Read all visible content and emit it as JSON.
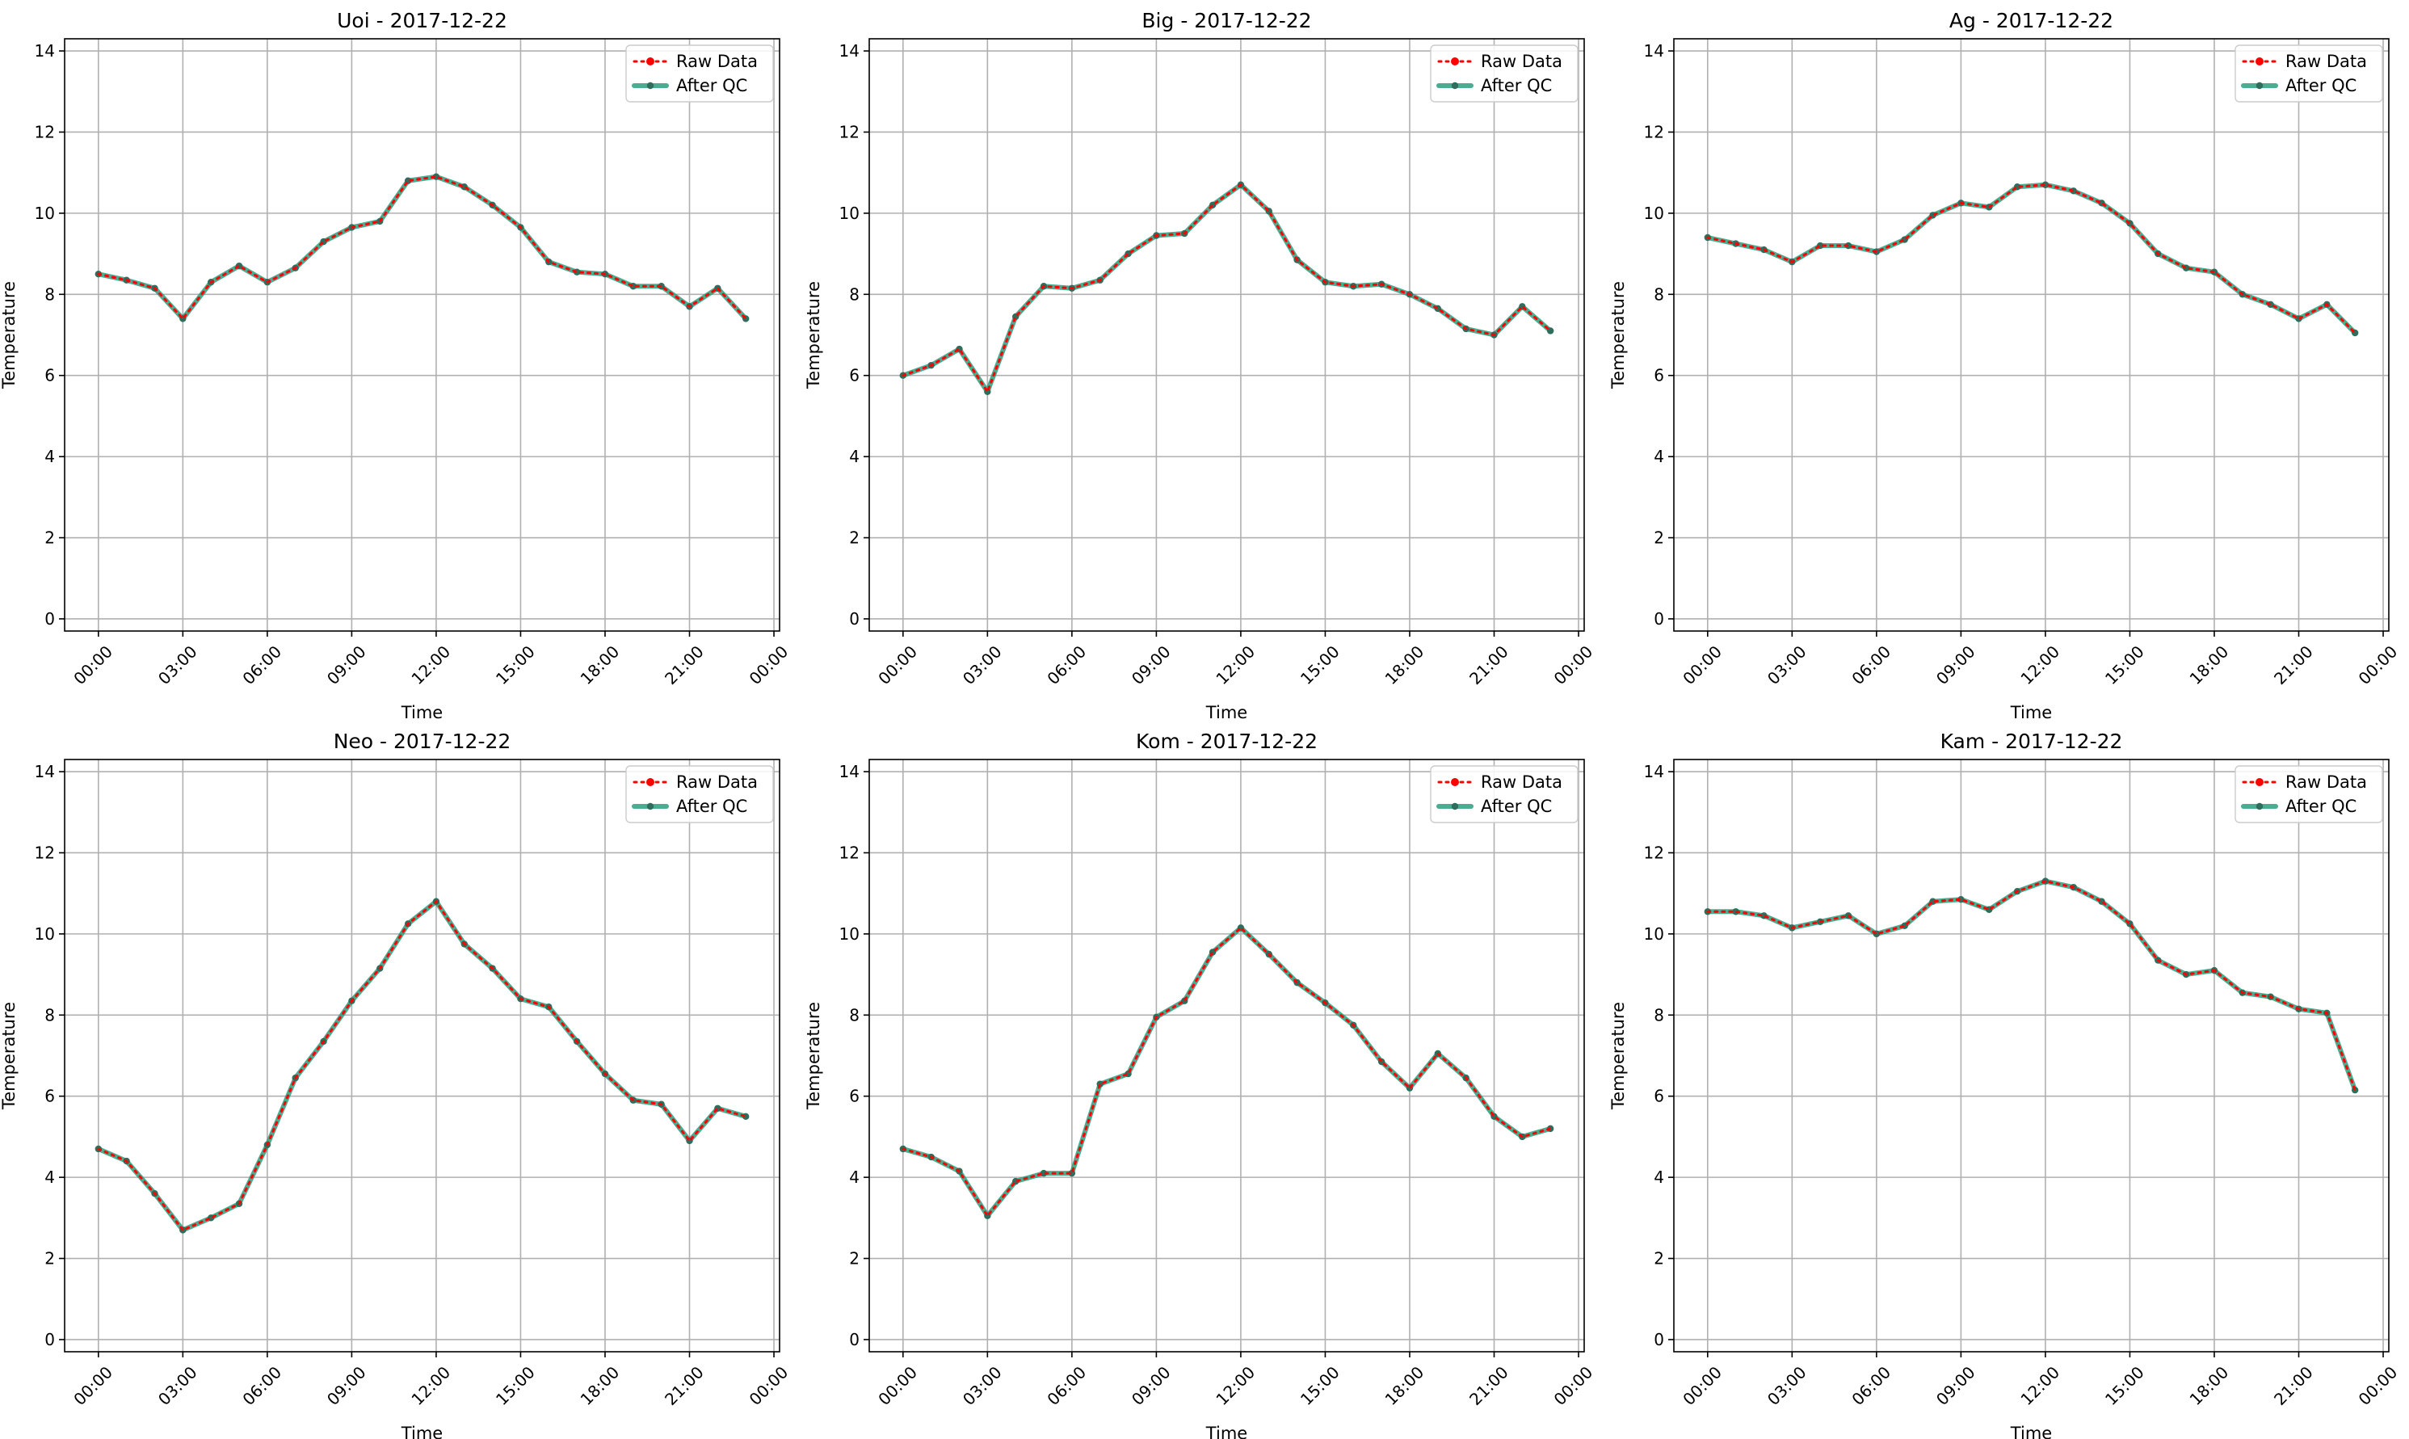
{
  "figure": {
    "background": "#ffffff"
  },
  "legend": {
    "position": "upper right",
    "raw_label": "Raw Data",
    "qc_label": "After QC"
  },
  "colors": {
    "raw": "#ff0000",
    "qc": "#2a9d7c",
    "qc_marker": "#2f6d5c",
    "grid": "#b0b0b0"
  },
  "chart_data": [
    {
      "type": "line",
      "title": "Uoi - 2017-12-22",
      "xlabel": "Time",
      "ylabel": "Temperature",
      "x": [
        "00:00",
        "01:00",
        "02:00",
        "03:00",
        "04:00",
        "05:00",
        "06:00",
        "07:00",
        "08:00",
        "09:00",
        "10:00",
        "11:00",
        "12:00",
        "13:00",
        "14:00",
        "15:00",
        "16:00",
        "17:00",
        "18:00",
        "19:00",
        "20:00",
        "21:00",
        "22:00",
        "23:00"
      ],
      "xticks": [
        "00:00",
        "03:00",
        "06:00",
        "09:00",
        "12:00",
        "15:00",
        "18:00",
        "21:00",
        "00:00"
      ],
      "yticks": [
        0,
        2,
        4,
        6,
        8,
        10,
        12,
        14
      ],
      "ylim": [
        -0.3,
        14.3
      ],
      "grid": true,
      "series": [
        {
          "name": "Raw Data",
          "values": [
            8.5,
            8.35,
            8.15,
            7.4,
            8.3,
            8.7,
            8.3,
            8.65,
            9.3,
            9.65,
            9.8,
            10.8,
            10.9,
            10.65,
            10.2,
            9.65,
            8.8,
            8.55,
            8.5,
            8.2,
            8.2,
            7.7,
            8.15,
            7.4
          ]
        },
        {
          "name": "After QC",
          "values": [
            8.5,
            8.35,
            8.15,
            7.4,
            8.3,
            8.7,
            8.3,
            8.65,
            9.3,
            9.65,
            9.8,
            10.8,
            10.9,
            10.65,
            10.2,
            9.65,
            8.8,
            8.55,
            8.5,
            8.2,
            8.2,
            7.7,
            8.15,
            7.4
          ]
        }
      ]
    },
    {
      "type": "line",
      "title": "Big - 2017-12-22",
      "xlabel": "Time",
      "ylabel": "Temperature",
      "x": [
        "00:00",
        "01:00",
        "02:00",
        "03:00",
        "04:00",
        "05:00",
        "06:00",
        "07:00",
        "08:00",
        "09:00",
        "10:00",
        "11:00",
        "12:00",
        "13:00",
        "14:00",
        "15:00",
        "16:00",
        "17:00",
        "18:00",
        "19:00",
        "20:00",
        "21:00",
        "22:00",
        "23:00"
      ],
      "xticks": [
        "00:00",
        "03:00",
        "06:00",
        "09:00",
        "12:00",
        "15:00",
        "18:00",
        "21:00",
        "00:00"
      ],
      "yticks": [
        0,
        2,
        4,
        6,
        8,
        10,
        12,
        14
      ],
      "ylim": [
        -0.3,
        14.3
      ],
      "grid": true,
      "series": [
        {
          "name": "Raw Data",
          "values": [
            6.0,
            6.25,
            6.65,
            5.6,
            7.45,
            8.2,
            8.15,
            8.35,
            9.0,
            9.45,
            9.5,
            10.2,
            10.7,
            10.05,
            8.85,
            8.3,
            8.2,
            8.25,
            8.0,
            7.65,
            7.15,
            7.0,
            7.7,
            7.1
          ]
        },
        {
          "name": "After QC",
          "values": [
            6.0,
            6.25,
            6.65,
            5.6,
            7.45,
            8.2,
            8.15,
            8.35,
            9.0,
            9.45,
            9.5,
            10.2,
            10.7,
            10.05,
            8.85,
            8.3,
            8.2,
            8.25,
            8.0,
            7.65,
            7.15,
            7.0,
            7.7,
            7.1
          ]
        }
      ]
    },
    {
      "type": "line",
      "title": "Ag - 2017-12-22",
      "xlabel": "Time",
      "ylabel": "Temperature",
      "x": [
        "00:00",
        "01:00",
        "02:00",
        "03:00",
        "04:00",
        "05:00",
        "06:00",
        "07:00",
        "08:00",
        "09:00",
        "10:00",
        "11:00",
        "12:00",
        "13:00",
        "14:00",
        "15:00",
        "16:00",
        "17:00",
        "18:00",
        "19:00",
        "20:00",
        "21:00",
        "22:00",
        "23:00"
      ],
      "xticks": [
        "00:00",
        "03:00",
        "06:00",
        "09:00",
        "12:00",
        "15:00",
        "18:00",
        "21:00",
        "00:00"
      ],
      "yticks": [
        0,
        2,
        4,
        6,
        8,
        10,
        12,
        14
      ],
      "ylim": [
        -0.3,
        14.3
      ],
      "grid": true,
      "series": [
        {
          "name": "Raw Data",
          "values": [
            9.4,
            9.25,
            9.1,
            8.8,
            9.2,
            9.2,
            9.05,
            9.35,
            9.95,
            10.25,
            10.15,
            10.65,
            10.7,
            10.55,
            10.25,
            9.75,
            9.0,
            8.65,
            8.55,
            8.0,
            7.75,
            7.4,
            7.75,
            7.05
          ]
        },
        {
          "name": "After QC",
          "values": [
            9.4,
            9.25,
            9.1,
            8.8,
            9.2,
            9.2,
            9.05,
            9.35,
            9.95,
            10.25,
            10.15,
            10.65,
            10.7,
            10.55,
            10.25,
            9.75,
            9.0,
            8.65,
            8.55,
            8.0,
            7.75,
            7.4,
            7.75,
            7.05
          ]
        }
      ]
    },
    {
      "type": "line",
      "title": "Neo - 2017-12-22",
      "xlabel": "Time",
      "ylabel": "Temperature",
      "x": [
        "00:00",
        "01:00",
        "02:00",
        "03:00",
        "04:00",
        "05:00",
        "06:00",
        "07:00",
        "08:00",
        "09:00",
        "10:00",
        "11:00",
        "12:00",
        "13:00",
        "14:00",
        "15:00",
        "16:00",
        "17:00",
        "18:00",
        "19:00",
        "20:00",
        "21:00",
        "22:00",
        "23:00"
      ],
      "xticks": [
        "00:00",
        "03:00",
        "06:00",
        "09:00",
        "12:00",
        "15:00",
        "18:00",
        "21:00",
        "00:00"
      ],
      "yticks": [
        0,
        2,
        4,
        6,
        8,
        10,
        12,
        14
      ],
      "ylim": [
        -0.3,
        14.3
      ],
      "grid": true,
      "series": [
        {
          "name": "Raw Data",
          "values": [
            4.7,
            4.4,
            3.6,
            2.7,
            3.0,
            3.35,
            4.8,
            6.45,
            7.35,
            8.35,
            9.15,
            10.25,
            10.8,
            9.75,
            9.15,
            8.4,
            8.2,
            7.35,
            6.55,
            5.9,
            5.8,
            4.9,
            5.7,
            5.5
          ]
        },
        {
          "name": "After QC",
          "values": [
            4.7,
            4.4,
            3.6,
            2.7,
            3.0,
            3.35,
            4.8,
            6.45,
            7.35,
            8.35,
            9.15,
            10.25,
            10.8,
            9.75,
            9.15,
            8.4,
            8.2,
            7.35,
            6.55,
            5.9,
            5.8,
            4.9,
            5.7,
            5.5
          ]
        }
      ]
    },
    {
      "type": "line",
      "title": "Kom - 2017-12-22",
      "xlabel": "Time",
      "ylabel": "Temperature",
      "x": [
        "00:00",
        "01:00",
        "02:00",
        "03:00",
        "04:00",
        "05:00",
        "06:00",
        "07:00",
        "08:00",
        "09:00",
        "10:00",
        "11:00",
        "12:00",
        "13:00",
        "14:00",
        "15:00",
        "16:00",
        "17:00",
        "18:00",
        "19:00",
        "20:00",
        "21:00",
        "22:00",
        "23:00"
      ],
      "xticks": [
        "00:00",
        "03:00",
        "06:00",
        "09:00",
        "12:00",
        "15:00",
        "18:00",
        "21:00",
        "00:00"
      ],
      "yticks": [
        0,
        2,
        4,
        6,
        8,
        10,
        12,
        14
      ],
      "ylim": [
        -0.3,
        14.3
      ],
      "grid": true,
      "series": [
        {
          "name": "Raw Data",
          "values": [
            4.7,
            4.5,
            4.15,
            3.05,
            3.9,
            4.1,
            4.1,
            6.3,
            6.55,
            7.95,
            8.35,
            9.55,
            10.15,
            9.5,
            8.8,
            8.3,
            7.75,
            6.85,
            6.2,
            7.05,
            6.45,
            5.5,
            5.0,
            5.2
          ]
        },
        {
          "name": "After QC",
          "values": [
            4.7,
            4.5,
            4.15,
            3.05,
            3.9,
            4.1,
            4.1,
            6.3,
            6.55,
            7.95,
            8.35,
            9.55,
            10.15,
            9.5,
            8.8,
            8.3,
            7.75,
            6.85,
            6.2,
            7.05,
            6.45,
            5.5,
            5.0,
            5.2
          ]
        }
      ]
    },
    {
      "type": "line",
      "title": "Kam - 2017-12-22",
      "xlabel": "Time",
      "ylabel": "Temperature",
      "x": [
        "00:00",
        "01:00",
        "02:00",
        "03:00",
        "04:00",
        "05:00",
        "06:00",
        "07:00",
        "08:00",
        "09:00",
        "10:00",
        "11:00",
        "12:00",
        "13:00",
        "14:00",
        "15:00",
        "16:00",
        "17:00",
        "18:00",
        "19:00",
        "20:00",
        "21:00",
        "22:00",
        "23:00"
      ],
      "xticks": [
        "00:00",
        "03:00",
        "06:00",
        "09:00",
        "12:00",
        "15:00",
        "18:00",
        "21:00",
        "00:00"
      ],
      "yticks": [
        0,
        2,
        4,
        6,
        8,
        10,
        12,
        14
      ],
      "ylim": [
        -0.3,
        14.3
      ],
      "grid": true,
      "series": [
        {
          "name": "Raw Data",
          "values": [
            10.55,
            10.55,
            10.45,
            10.15,
            10.3,
            10.45,
            10.0,
            10.2,
            10.8,
            10.85,
            10.6,
            11.05,
            11.3,
            11.15,
            10.8,
            10.25,
            9.35,
            9.0,
            9.1,
            8.55,
            8.45,
            8.15,
            8.05,
            6.15
          ]
        },
        {
          "name": "After QC",
          "values": [
            10.55,
            10.55,
            10.45,
            10.15,
            10.3,
            10.45,
            10.0,
            10.2,
            10.8,
            10.85,
            10.6,
            11.05,
            11.3,
            11.15,
            10.8,
            10.25,
            9.35,
            9.0,
            9.1,
            8.55,
            8.45,
            8.15,
            8.05,
            6.15
          ]
        }
      ]
    }
  ]
}
